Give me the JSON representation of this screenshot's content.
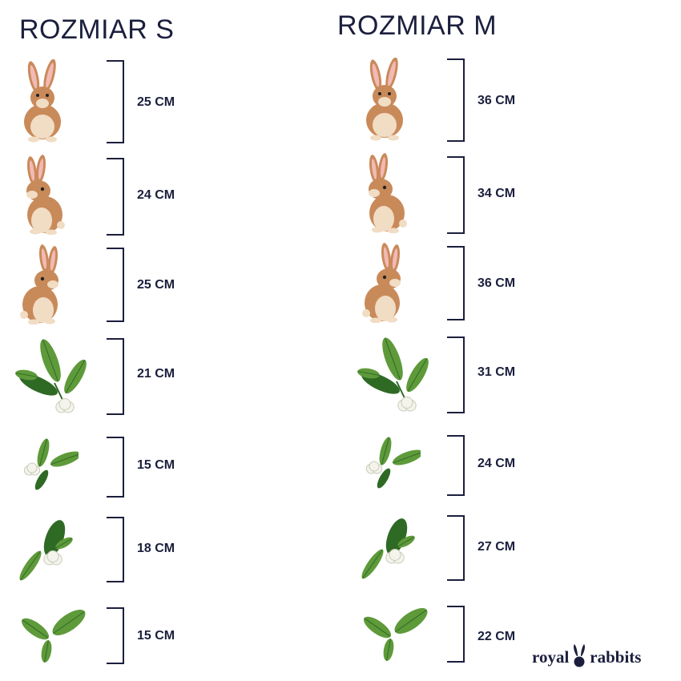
{
  "headings": {
    "size_s": "ROZMIAR S",
    "size_m": "ROZMIAR M"
  },
  "items": [
    {
      "picture": "rabbit-front-icon",
      "size_s": "25 CM",
      "size_m": "36 CM"
    },
    {
      "picture": "rabbit-side-icon",
      "size_s": "24 CM",
      "size_m": "34 CM"
    },
    {
      "picture": "rabbit-lookback-icon",
      "size_s": "25 CM",
      "size_m": "36 CM"
    },
    {
      "picture": "leaf-cluster-flower-icon",
      "size_s": "21 CM",
      "size_m": "31 CM"
    },
    {
      "picture": "flower-two-leaves-icon",
      "size_s": "15 CM",
      "size_m": "24 CM"
    },
    {
      "picture": "curled-leaf-flower-icon",
      "size_s": "18 CM",
      "size_m": "27 CM"
    },
    {
      "picture": "two-leaves-icon",
      "size_s": "15 CM",
      "size_m": "22 CM"
    }
  ],
  "logo": {
    "left": "royal",
    "right": "rabbits",
    "mark": "rabbit-ears-icon"
  },
  "colors": {
    "text": "#1b1f3d",
    "fur": "#c98a5a",
    "fur_light": "#f1dcc4",
    "ear_inner": "#f3b9b4",
    "leaf": "#5e9a3a",
    "leaf_dark": "#2f6a25",
    "flower": "#f4f4ec"
  }
}
